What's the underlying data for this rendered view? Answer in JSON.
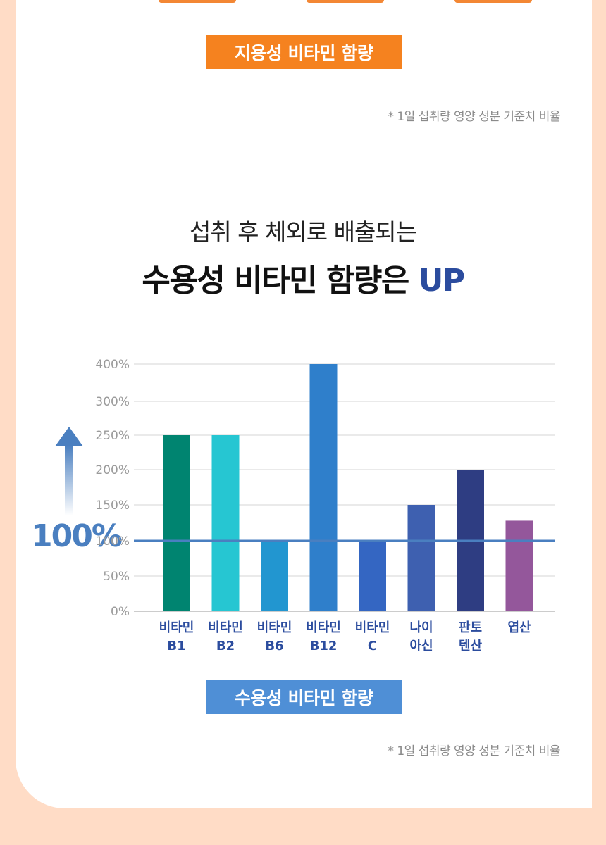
{
  "fat_soluble": {
    "box_label": "지용성 비타민 함량",
    "note": "* 1일 섭취량 영양 성분 기준치 비율"
  },
  "headline": {
    "line1": "섭취 후 체외로 배출되는",
    "line2_main": "수용성 비타민 함량은 ",
    "line2_accent": "UP"
  },
  "reference_label": "100%",
  "water_soluble": {
    "box_label": "수용성 비타민 함량",
    "note": "* 1일 섭취량 영양 성분 기준치 비율"
  },
  "colors": {
    "page_bg": "#FFDCC6",
    "orange": "#F5821F",
    "blue_box": "#4F8FD6",
    "accent_text": "#2B4C9E",
    "reference_line": "#4A7FC0"
  },
  "chart_data": {
    "type": "bar",
    "categories": [
      [
        "비타민",
        "B1"
      ],
      [
        "비타민",
        "B2"
      ],
      [
        "비타민",
        "B6"
      ],
      [
        "비타민",
        "B12"
      ],
      [
        "비타민",
        "C"
      ],
      [
        "나이",
        "아신"
      ],
      [
        "판토",
        "텐산"
      ],
      [
        "엽산",
        ""
      ]
    ],
    "values": [
      250,
      250,
      100,
      400,
      100,
      150,
      200,
      128
    ],
    "bar_colors": [
      "#008470",
      "#26C6D2",
      "#2296D0",
      "#2F7FCB",
      "#3466C2",
      "#3E60B0",
      "#2E3D82",
      "#94579B"
    ],
    "y_ticks": [
      0,
      50,
      100,
      150,
      200,
      250,
      300,
      400
    ],
    "y_tick_labels": [
      "0%",
      "50%",
      "100%",
      "150%",
      "200%",
      "250%",
      "300%",
      "400%"
    ],
    "ylim": [
      0,
      400
    ],
    "reference_value": 100,
    "grid": true
  }
}
